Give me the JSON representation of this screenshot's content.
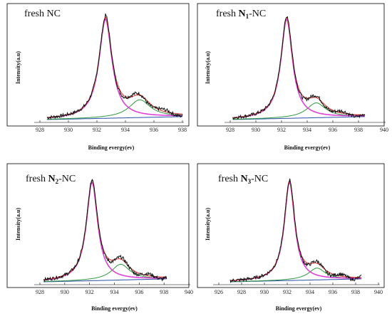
{
  "chart_data": [
    {
      "type": "line",
      "title_prefix": "fresh ",
      "title_bold": "",
      "title_sub": "",
      "title_suffix": "NC",
      "xlabel": "Binding evergy(ev)",
      "ylabel": "Intensity(a.u)",
      "xlim": [
        928,
        938
      ],
      "xticks": [
        "928",
        "930",
        "932",
        "934",
        "936",
        "938"
      ],
      "y_ticks_shown": false,
      "peaks": [
        {
          "center": 932.6,
          "height": 1.0,
          "width": 0.55
        },
        {
          "center": 935.0,
          "height": 0.18,
          "width": 0.9
        }
      ],
      "baseline": {
        "x": [
          928.5,
          938
        ],
        "y": [
          0.0,
          0.03
        ]
      },
      "raw_end_x": [
        928.5,
        938
      ]
    },
    {
      "type": "line",
      "title_prefix": "fresh ",
      "title_bold": "N",
      "title_sub": "1",
      "title_suffix": "-NC",
      "xlabel": "Binding evergy(ev)",
      "ylabel": "Intensity(a.u)",
      "xlim": [
        928,
        940
      ],
      "xticks": [
        "928",
        "930",
        "932",
        "934",
        "936",
        "938",
        "940"
      ],
      "y_ticks_shown": false,
      "peaks": [
        {
          "center": 932.4,
          "height": 1.0,
          "width": 0.55
        },
        {
          "center": 934.7,
          "height": 0.15,
          "width": 0.9
        }
      ],
      "baseline": {
        "x": [
          928.2,
          938.5
        ],
        "y": [
          0.0,
          0.03
        ]
      },
      "raw_end_x": [
        928.2,
        938.5
      ]
    },
    {
      "type": "line",
      "title_prefix": "fresh ",
      "title_bold": "N",
      "title_sub": "2",
      "title_suffix": "-NC",
      "xlabel": "Binding evergy(ev)",
      "ylabel": "Intensity(a.u)",
      "xlim": [
        928,
        940
      ],
      "xticks": [
        "928",
        "930",
        "932",
        "934",
        "936",
        "938",
        "940"
      ],
      "y_ticks_shown": false,
      "peaks": [
        {
          "center": 932.2,
          "height": 1.0,
          "width": 0.55
        },
        {
          "center": 934.5,
          "height": 0.16,
          "width": 0.9
        }
      ],
      "baseline": {
        "x": [
          928.3,
          938.2
        ],
        "y": [
          0.0,
          0.03
        ]
      },
      "raw_end_x": [
        928.3,
        938.2
      ]
    },
    {
      "type": "line",
      "title_prefix": "fresh ",
      "title_bold": "N",
      "title_sub": "3",
      "title_suffix": "-NC",
      "xlabel": "Binding evergy(ev)",
      "ylabel": "Intensity(a.u)",
      "xlim": [
        926,
        940
      ],
      "xticks": [
        "926",
        "928",
        "930",
        "932",
        "934",
        "936",
        "938",
        "940"
      ],
      "y_ticks_shown": false,
      "peaks": [
        {
          "center": 932.2,
          "height": 1.0,
          "width": 0.55
        },
        {
          "center": 934.6,
          "height": 0.12,
          "width": 0.9
        }
      ],
      "baseline": {
        "x": [
          927.0,
          938.5
        ],
        "y": [
          0.0,
          0.03
        ]
      },
      "raw_end_x": [
        927.0,
        938.5
      ]
    }
  ]
}
